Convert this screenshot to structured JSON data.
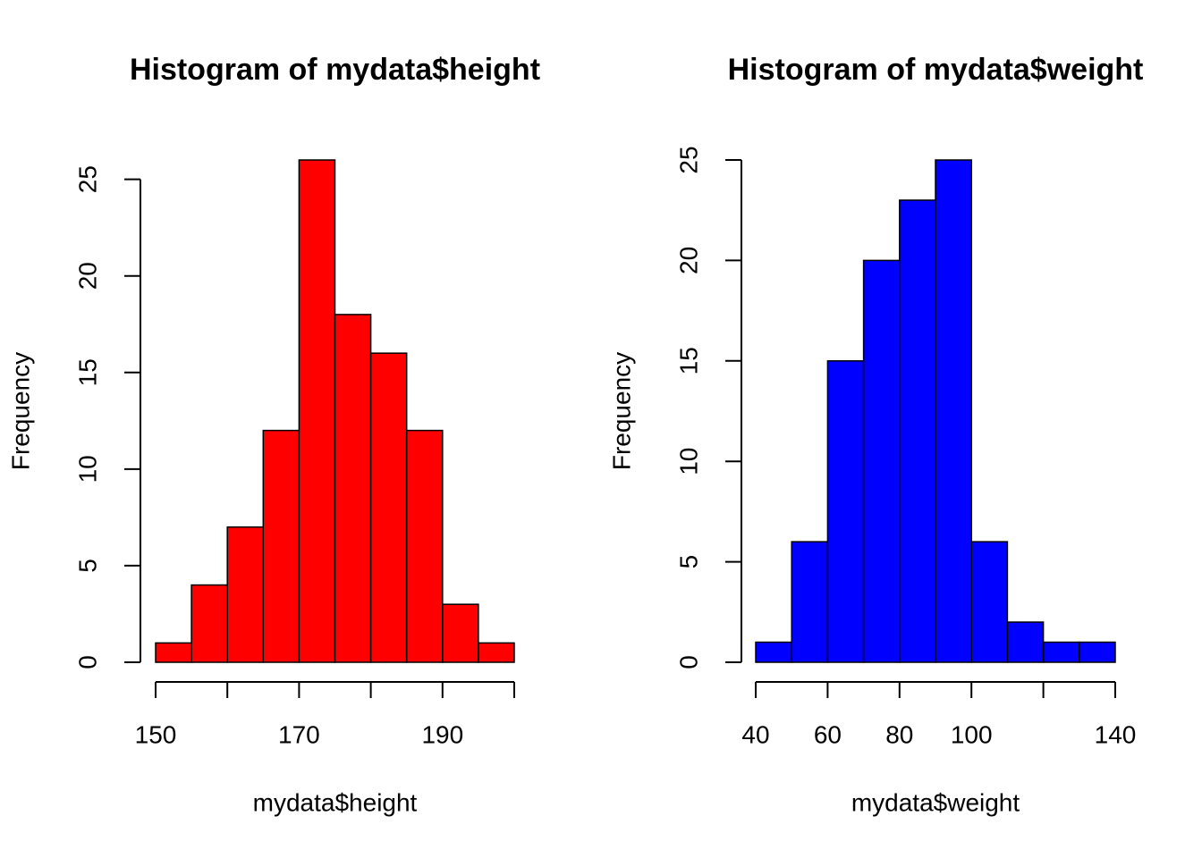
{
  "chart_data": [
    {
      "type": "histogram",
      "title": "Histogram of mydata$height",
      "x_label": "mydata$height",
      "y_label": "Frequency",
      "bins": [
        150,
        155,
        160,
        165,
        170,
        175,
        180,
        185,
        190,
        195,
        200
      ],
      "values": [
        1,
        4,
        7,
        12,
        26,
        18,
        16,
        12,
        3,
        1
      ],
      "color": "#ff0000",
      "xlim": [
        150,
        200
      ],
      "xticks": [
        150,
        {
          "value": 160,
          "label": null
        },
        170,
        {
          "value": 180,
          "label": null
        },
        190,
        {
          "value": 200,
          "label": null
        }
      ],
      "ylim": [
        0,
        26
      ],
      "yticks": [
        0,
        5,
        10,
        15,
        20,
        25
      ]
    },
    {
      "type": "histogram",
      "title": "Histogram of mydata$weight",
      "x_label": "mydata$weight",
      "y_label": "Frequency",
      "bins": [
        40,
        50,
        60,
        70,
        80,
        90,
        100,
        110,
        120,
        130,
        140
      ],
      "values": [
        1,
        6,
        15,
        20,
        23,
        25,
        6,
        2,
        1,
        1
      ],
      "color": "#0000ff",
      "xlim": [
        40,
        140
      ],
      "xticks": [
        40,
        60,
        80,
        100,
        {
          "value": 120,
          "label": null
        },
        140
      ],
      "ylim": [
        0,
        25
      ],
      "yticks": [
        0,
        5,
        10,
        15,
        20,
        25
      ]
    }
  ]
}
